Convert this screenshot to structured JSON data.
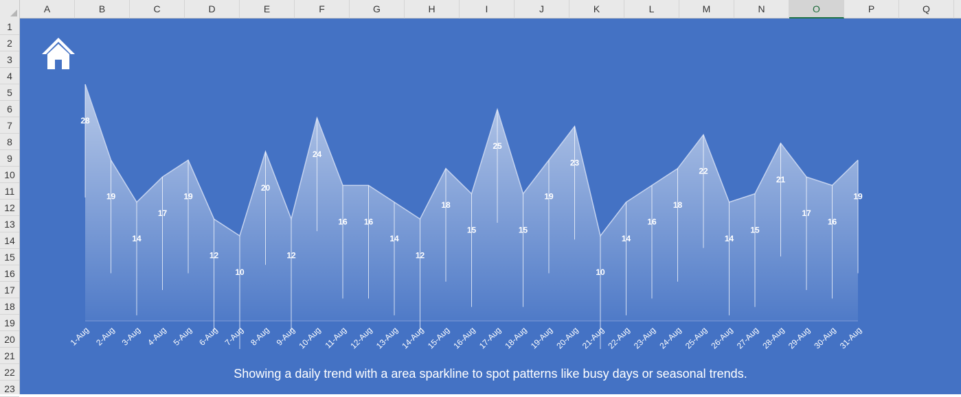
{
  "sheet": {
    "columns": [
      "A",
      "B",
      "C",
      "D",
      "E",
      "F",
      "G",
      "H",
      "I",
      "J",
      "K",
      "L",
      "M",
      "N",
      "O",
      "P",
      "Q"
    ],
    "active_column": "O",
    "rows": [
      "1",
      "2",
      "3",
      "4",
      "5",
      "6",
      "7",
      "8",
      "9",
      "10",
      "11",
      "12",
      "13",
      "14",
      "15",
      "16",
      "17",
      "18",
      "19",
      "20",
      "21",
      "22",
      "23"
    ]
  },
  "colors": {
    "panel": "#4472c4",
    "area_top": "#c5d3ef",
    "label": "#ffffff"
  },
  "icons": {
    "home": "home-icon"
  },
  "caption": "Showing a daily trend with a area sparkline to spot patterns like busy days or seasonal trends.",
  "chart_data": {
    "type": "area",
    "categories": [
      "1-Aug",
      "2-Aug",
      "3-Aug",
      "4-Aug",
      "5-Aug",
      "6-Aug",
      "7-Aug",
      "8-Aug",
      "9-Aug",
      "10-Aug",
      "11-Aug",
      "12-Aug",
      "13-Aug",
      "14-Aug",
      "15-Aug",
      "16-Aug",
      "17-Aug",
      "18-Aug",
      "19-Aug",
      "20-Aug",
      "21-Aug",
      "22-Aug",
      "23-Aug",
      "24-Aug",
      "25-Aug",
      "26-Aug",
      "27-Aug",
      "28-Aug",
      "29-Aug",
      "30-Aug",
      "31-Aug"
    ],
    "values": [
      28,
      19,
      14,
      17,
      19,
      12,
      10,
      20,
      12,
      24,
      16,
      16,
      14,
      12,
      18,
      15,
      25,
      15,
      19,
      23,
      10,
      14,
      16,
      18,
      22,
      14,
      15,
      21,
      17,
      16,
      19
    ],
    "title": "",
    "xlabel": "",
    "ylabel": "",
    "ylim": [
      0,
      28
    ],
    "grid": false,
    "data_labels": true,
    "drop_lines": true,
    "legend": "none"
  }
}
